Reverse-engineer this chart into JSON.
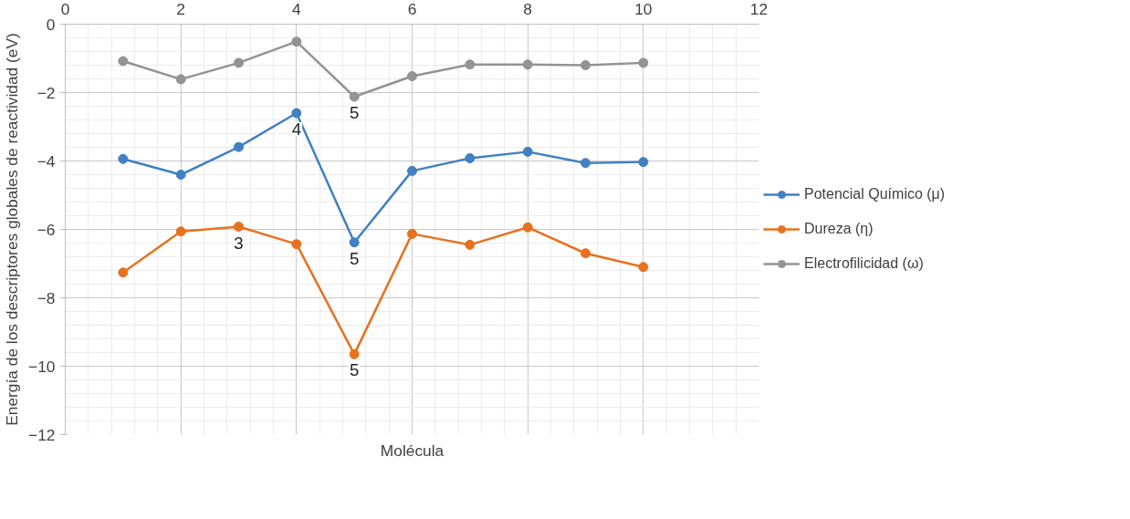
{
  "chart_data": {
    "type": "line",
    "xlabel": "Molécula",
    "ylabel": "Energía de los descriptores globales de reactividad (eV)",
    "x": [
      1,
      2,
      3,
      4,
      5,
      6,
      7,
      8,
      9,
      10
    ],
    "xlim": [
      0,
      12
    ],
    "xticks": [
      0,
      2,
      4,
      6,
      8,
      10,
      12
    ],
    "ylim": [
      -12,
      0
    ],
    "yticks": [
      -12,
      -10,
      -8,
      -6,
      -4,
      -2,
      0
    ],
    "grid": true,
    "legend": "right",
    "marker": "circle",
    "line_style": "solid",
    "series": [
      {
        "name": "Potencial Químico (μ)",
        "color": "#4180c2",
        "values": [
          -3.94,
          -4.4,
          -3.59,
          -2.6,
          -6.38,
          -4.29,
          -3.92,
          -3.73,
          -4.06,
          -4.03
        ]
      },
      {
        "name": "Dureza (η)",
        "color": "#e8711f",
        "values": [
          -7.26,
          -6.06,
          -5.92,
          -6.43,
          -9.65,
          -6.13,
          -6.45,
          -5.94,
          -6.7,
          -7.1
        ]
      },
      {
        "name": "Electrofilicidad (ω)",
        "color": "#939393",
        "values": [
          -1.08,
          -1.61,
          -1.13,
          -0.51,
          -2.12,
          -1.52,
          -1.18,
          -1.18,
          -1.2,
          -1.13
        ]
      }
    ],
    "annotations": [
      {
        "text": "4",
        "x": 4,
        "y": -2.6
      },
      {
        "text": "5",
        "x": 5,
        "y": -2.12
      },
      {
        "text": "5",
        "x": 5,
        "y": -6.38
      },
      {
        "text": "5",
        "x": 5,
        "y": -9.65
      },
      {
        "text": "3",
        "x": 3,
        "y": -5.92
      }
    ]
  }
}
